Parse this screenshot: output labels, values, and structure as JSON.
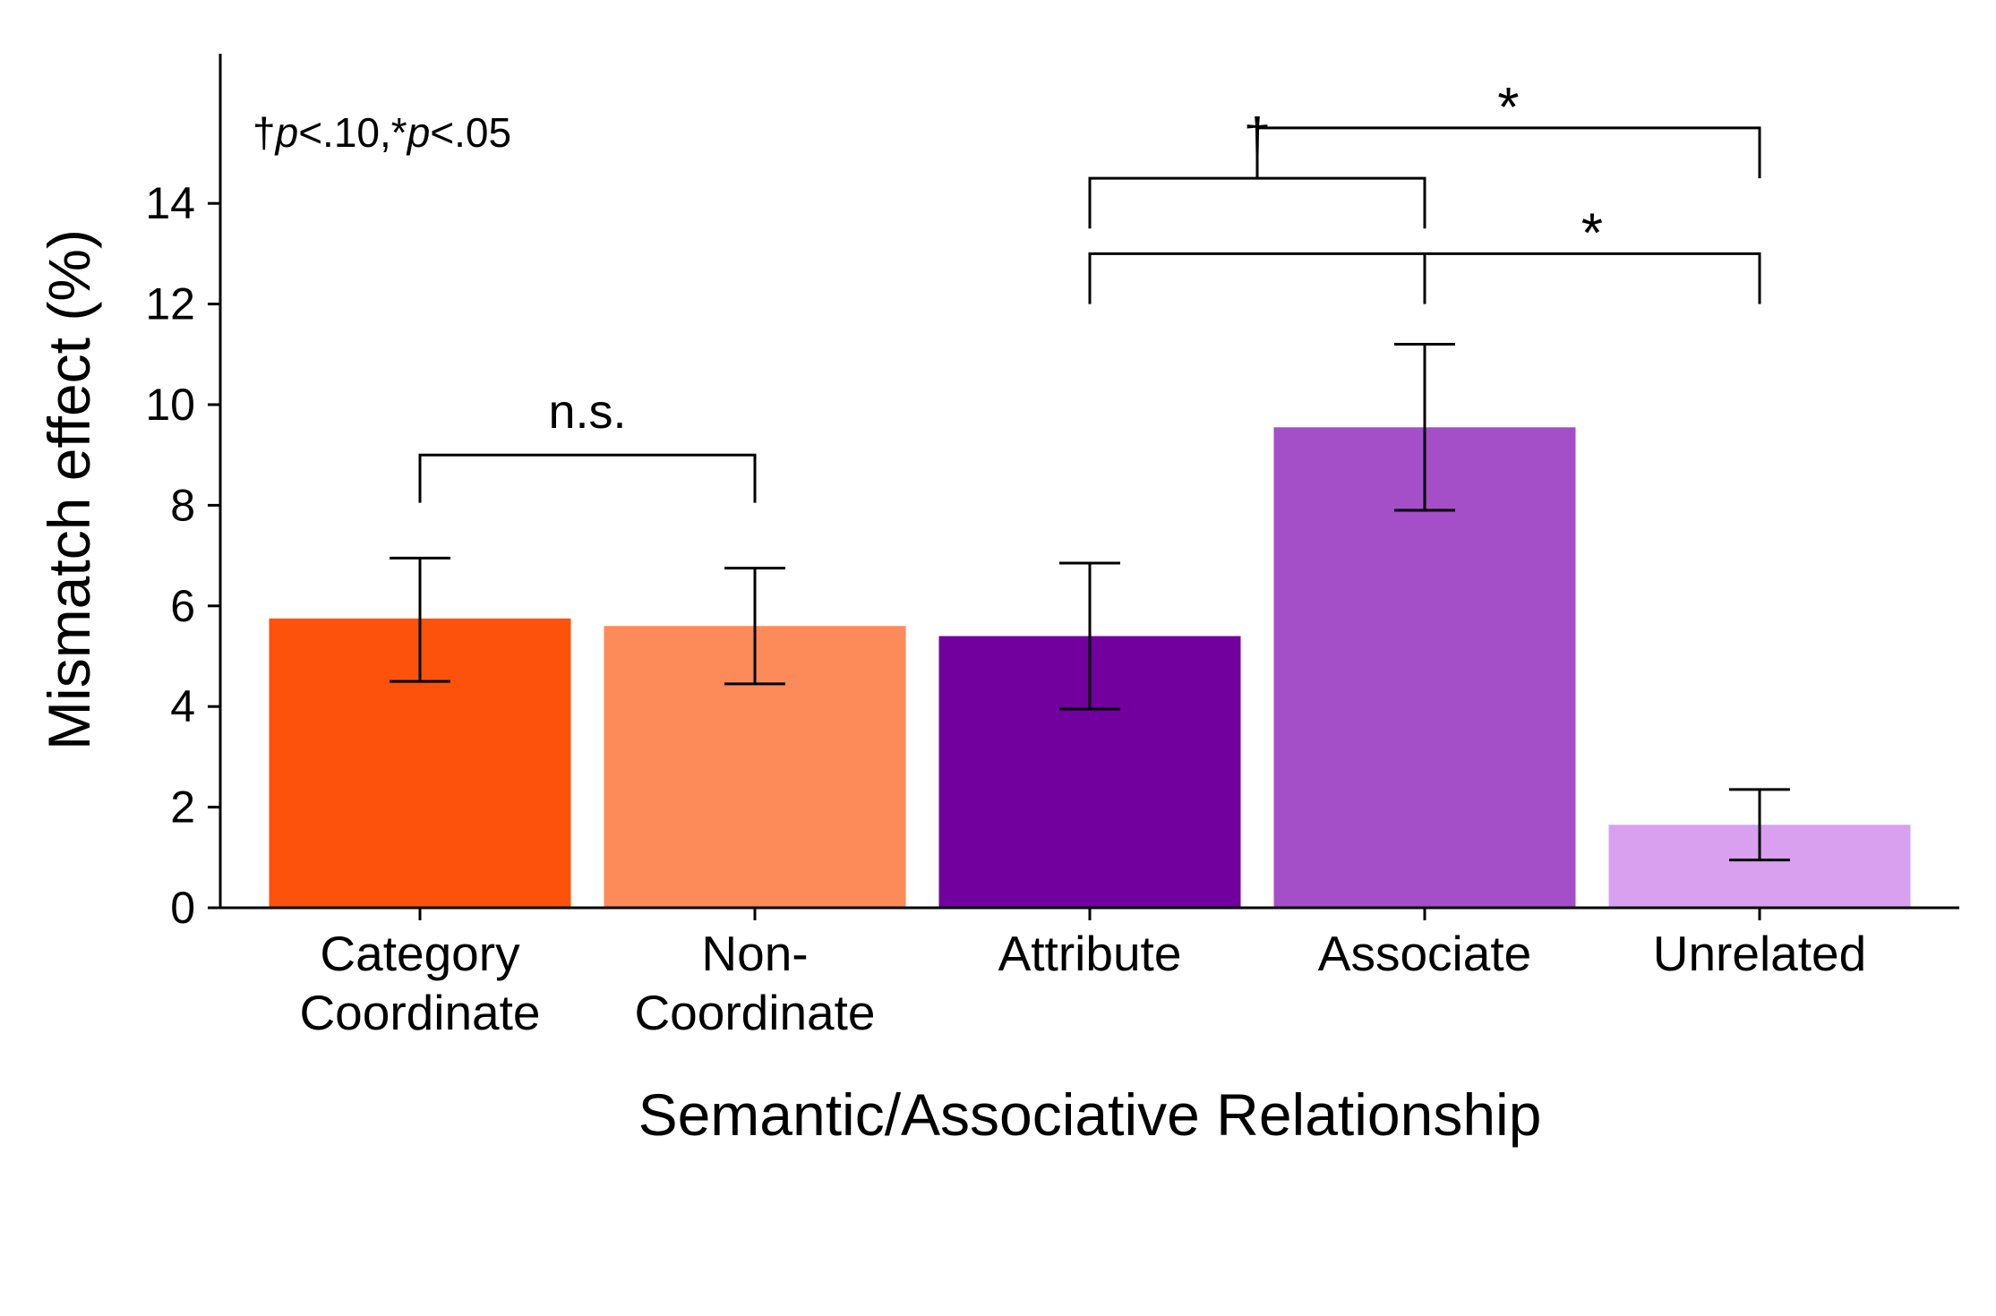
{
  "chart_data": {
    "type": "bar",
    "xlabel": "Semantic/Associative Relationship",
    "ylabel": "Mismatch effect (%)",
    "categories": [
      [
        "Category",
        "Coordinate"
      ],
      [
        "Non-",
        "Coordinate"
      ],
      [
        "Attribute"
      ],
      [
        "Associate"
      ],
      [
        "Unrelated"
      ]
    ],
    "values": [
      5.75,
      5.6,
      5.4,
      9.55,
      1.65
    ],
    "errors": [
      {
        "low": 4.5,
        "high": 6.95
      },
      {
        "low": 4.45,
        "high": 6.75
      },
      {
        "low": 3.95,
        "high": 6.85
      },
      {
        "low": 7.9,
        "high": 11.2
      },
      {
        "low": 0.95,
        "high": 2.35
      }
    ],
    "colors": [
      "#fd520b",
      "#fd8b59",
      "#72009f",
      "#a44fc8",
      "#d9a0f0"
    ],
    "ylim": [
      0,
      17
    ],
    "yticks": [
      0,
      2,
      4,
      6,
      8,
      10,
      12,
      14
    ],
    "yticklabels": [
      "0",
      "2",
      "4",
      "6",
      "8",
      "10",
      "12",
      "14"
    ],
    "legend_note": {
      "dagger": "†",
      "p1": "p",
      "threshold1": "<.10,",
      "star": "*",
      "p2": "p",
      "threshold2": "<.05"
    },
    "annotations": [
      {
        "from": 0,
        "to": 1,
        "y": 9.0,
        "drop_from": 0.95,
        "drop_to": 0.95,
        "label": "n.s."
      },
      {
        "from": 2,
        "to": 3,
        "y": 14.5,
        "drop_from": 1.0,
        "drop_to": 1.0,
        "label": "†"
      },
      {
        "from": 2,
        "to": 4,
        "y": 13.0,
        "drop_from": 1.0,
        "drop_to": 1.0,
        "mid_drop_at": 3,
        "label": "*",
        "label_x": 3.5
      },
      {
        "from": 2.5,
        "to": 4,
        "y": 15.5,
        "drop_from": 1.0,
        "drop_to": 1.0,
        "label": "*"
      }
    ]
  }
}
